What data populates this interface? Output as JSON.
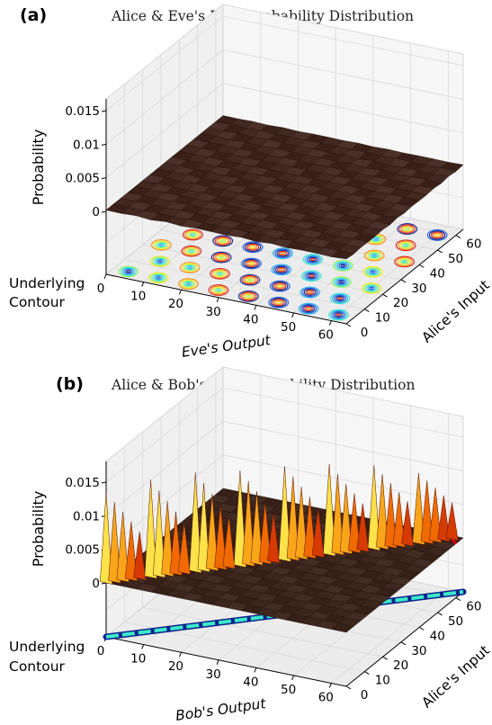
{
  "chart_data": [
    {
      "type": "surface",
      "panel_label": "(a)",
      "title": "Alice & Eve's Joint Probability Distribution",
      "xlabel": "Eve's Output",
      "ylabel": "Alice's Input",
      "zlabel": "Probability",
      "contour_label": [
        "Underlying",
        "Contour"
      ],
      "xticks": [
        "0",
        "10",
        "20",
        "30",
        "40",
        "50",
        "60"
      ],
      "yticks": [
        "0",
        "10",
        "20",
        "30",
        "40",
        "50",
        "60"
      ],
      "zticks": [
        "0",
        "0.005",
        "0.01",
        "0.015"
      ],
      "xlim": [
        0,
        64
      ],
      "ylim": [
        0,
        64
      ],
      "zlim": [
        0,
        0.015
      ],
      "description_values": {
        "surface_level": 0.0002,
        "ripple_amplitude": 0.0001
      },
      "colormap": "hot",
      "contour_colormap": "jet"
    },
    {
      "type": "surface",
      "panel_label": "(b)",
      "title": "Alice & Bob's Joint Probability Distribution",
      "xlabel": "Bob's Output",
      "ylabel": "Alice's Input",
      "zlabel": "Probability",
      "contour_label": [
        "Underlying",
        "Contour"
      ],
      "xticks": [
        "0",
        "10",
        "20",
        "30",
        "40",
        "50",
        "60"
      ],
      "yticks": [
        "0",
        "10",
        "20",
        "30",
        "40",
        "50",
        "60"
      ],
      "zticks": [
        "0",
        "0.005",
        "0.01",
        "0.015"
      ],
      "xlim": [
        0,
        64
      ],
      "ylim": [
        0,
        64
      ],
      "zlim": [
        0,
        0.015
      ],
      "diagonal_peaks": {
        "x": [
          0,
          8,
          16,
          24,
          32,
          40,
          48,
          56
        ],
        "z": [
          0.0135,
          0.0145,
          0.0148,
          0.0142,
          0.014,
          0.0135,
          0.0125,
          0.0105
        ]
      },
      "colormap": "hot",
      "contour_colormap": "jet"
    }
  ],
  "colors": {
    "pane_left": "#f0f0f0",
    "pane_back": "#f6f6f6",
    "pane_floor": "#ececec",
    "grid": "#d9d9d9",
    "surface": "#3a211a",
    "surface_edge": "#1e0f0a"
  }
}
